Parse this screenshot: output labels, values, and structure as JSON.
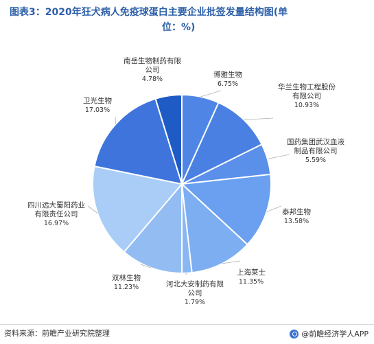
{
  "title_line1": "图表3：2020年狂犬病人免疫球蛋白主要企业批签发量结构图(单",
  "title_line2": "位：%)",
  "source": "资料来源：前瞻产业研究院整理",
  "brand": "@前瞻经济学人APP",
  "chart_data": {
    "type": "pie",
    "title": "图表3：2020年狂犬病人免疫球蛋白主要企业批签发量结构图(单位：%)",
    "unit": "%",
    "slices": [
      {
        "label": "博雅生物",
        "value": 6.75,
        "value_text": "6.75%",
        "color": "#4f86e6"
      },
      {
        "label": "华兰生物工程股份有限公司",
        "value": 10.93,
        "value_text": "10.93%",
        "color": "#4a80e2"
      },
      {
        "label": "国药集团武汉血液制品有限公司",
        "value": 5.59,
        "value_text": "5.59%",
        "color": "#5a8fea"
      },
      {
        "label": "泰邦生物",
        "value": 13.58,
        "value_text": "13.58%",
        "color": "#6aa0ef"
      },
      {
        "label": "上海莱士",
        "value": 11.35,
        "value_text": "11.35%",
        "color": "#7daef2"
      },
      {
        "label": "河北大安制药有限公司",
        "value": 1.79,
        "value_text": "1.79%",
        "color": "#8ab7f3"
      },
      {
        "label": "双林生物",
        "value": 11.23,
        "value_text": "11.23%",
        "color": "#93bdf2"
      },
      {
        "label": "四川远大蜀阳药业有限责任公司",
        "value": 16.97,
        "value_text": "16.97%",
        "color": "#a9cdf6"
      },
      {
        "label": "卫光生物",
        "value": 17.03,
        "value_text": "17.03%",
        "color": "#3e74dc"
      },
      {
        "label": "南岳生物制药有限公司",
        "value": 4.78,
        "value_text": "4.78%",
        "color": "#1f5bc4"
      }
    ]
  }
}
